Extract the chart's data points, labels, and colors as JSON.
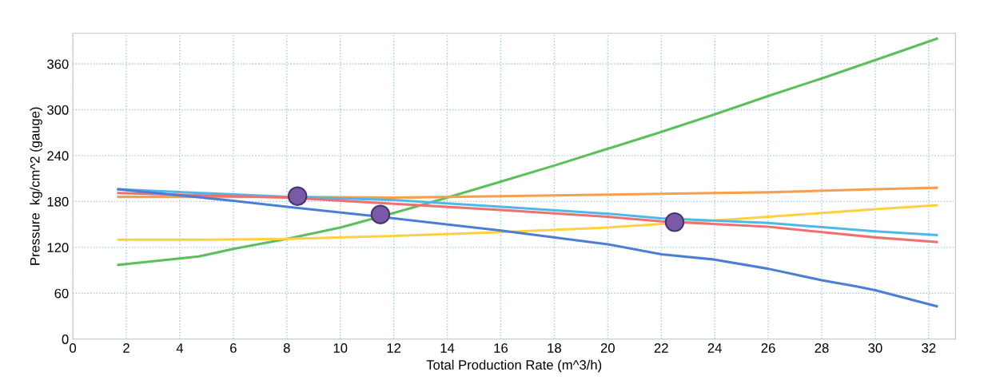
{
  "chart_data": {
    "type": "line",
    "xlabel": "Total Production Rate (m^3/h)",
    "ylabel": "Pressure  kg/cm^2 (gauge)",
    "xlim": [
      0,
      33
    ],
    "ylim": [
      0,
      400
    ],
    "xticks": [
      0,
      2,
      4,
      6,
      8,
      10,
      12,
      14,
      16,
      18,
      20,
      22,
      24,
      26,
      28,
      30,
      32
    ],
    "yticks": [
      0,
      60,
      120,
      180,
      240,
      300,
      360
    ],
    "grid": true,
    "marker": "none",
    "line_style": "solid",
    "series": [
      {
        "color": "#5cbf5c",
        "x": [
          1.7,
          4.7,
          6,
          8,
          10,
          12,
          14,
          16,
          18,
          20,
          22,
          24,
          26,
          28,
          30,
          32.3
        ],
        "values": [
          97,
          108,
          118,
          131,
          146,
          165,
          185,
          206,
          227,
          249,
          271,
          294,
          318,
          341,
          365,
          393
        ]
      },
      {
        "color": "#f5a050",
        "x": [
          1.7,
          8,
          12,
          16,
          20,
          24,
          26,
          30,
          32.3
        ],
        "values": [
          186,
          186,
          185,
          187,
          189,
          191,
          192,
          196,
          198
        ]
      },
      {
        "color": "#ffd040",
        "x": [
          1.7,
          5,
          8,
          12,
          16,
          20,
          24,
          26,
          30,
          32.3
        ],
        "values": [
          130,
          130,
          131,
          135,
          140,
          146,
          155,
          160,
          170,
          175
        ]
      },
      {
        "color": "#4fb8e8",
        "x": [
          1.7,
          8,
          12,
          16,
          20,
          22,
          26,
          30,
          32.3
        ],
        "values": [
          196,
          186,
          182,
          173,
          164,
          158,
          152,
          141,
          136
        ]
      },
      {
        "color": "#f07070",
        "x": [
          1.7,
          8,
          12,
          16,
          20,
          22,
          26,
          30,
          32.3
        ],
        "values": [
          191,
          185,
          177,
          169,
          160,
          154,
          147,
          133,
          127
        ]
      },
      {
        "color": "#4a7fd4",
        "x": [
          1.7,
          6,
          8,
          11.5,
          16,
          20,
          22,
          24,
          26,
          28,
          29.3,
          30,
          32.3
        ],
        "values": [
          196,
          181,
          173,
          160,
          142,
          124,
          111,
          104,
          92,
          77,
          69,
          64,
          43
        ]
      },
      {
        "type": "scatter",
        "color": "#7a5aa8",
        "marker": "circle",
        "x": [
          8.4,
          11.5,
          22.5
        ],
        "values": [
          187,
          163,
          153
        ]
      }
    ]
  }
}
